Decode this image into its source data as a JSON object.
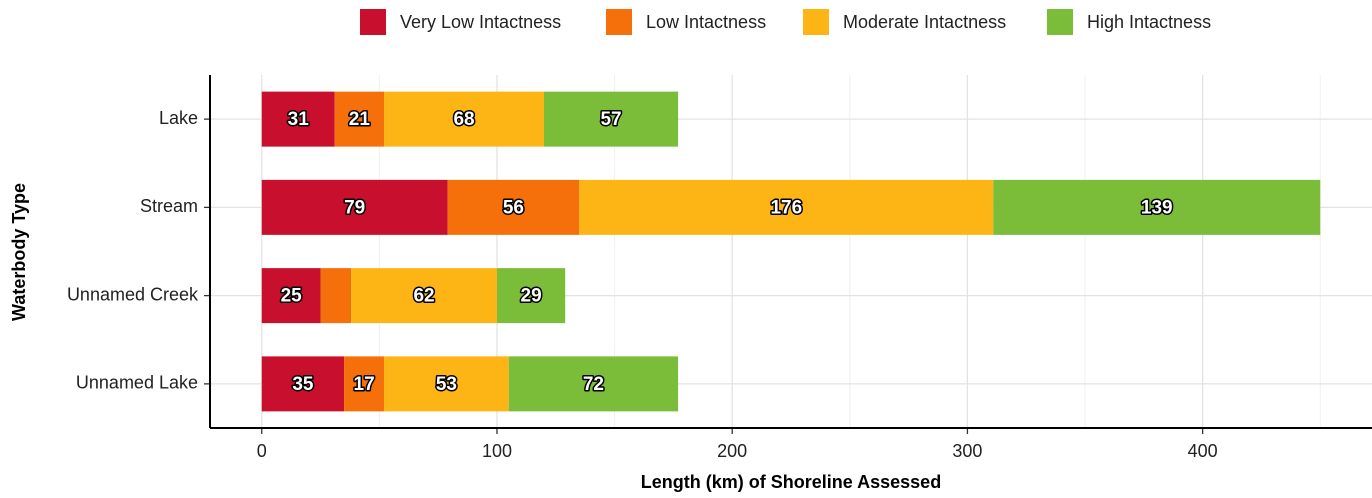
{
  "chart_data": {
    "type": "stacked-barh",
    "xlabel": "Length (km) of Shoreline Assessed",
    "ylabel": "Waterbody Type",
    "categories": [
      "Lake",
      "Stream",
      "Unnamed Creek",
      "Unnamed Lake"
    ],
    "series": [
      {
        "name": "Very Low Intactness",
        "color": "#c8102e",
        "values": [
          31,
          79,
          25,
          35
        ]
      },
      {
        "name": "Low Intactness",
        "color": "#f5700a",
        "values": [
          21,
          56,
          13,
          17
        ],
        "value_labels": [
          "21",
          "56",
          null,
          "17"
        ]
      },
      {
        "name": "Moderate Intactness",
        "color": "#fdb515",
        "values": [
          68,
          176,
          62,
          53
        ]
      },
      {
        "name": "High Intactness",
        "color": "#7bbd38",
        "values": [
          57,
          139,
          29,
          72
        ]
      }
    ],
    "xlim": [
      -22,
      472
    ],
    "xticks": [
      0,
      100,
      200,
      300,
      400
    ],
    "xminorticks": [
      50,
      150,
      250,
      350,
      450
    ],
    "grid": true,
    "legend": "top"
  }
}
